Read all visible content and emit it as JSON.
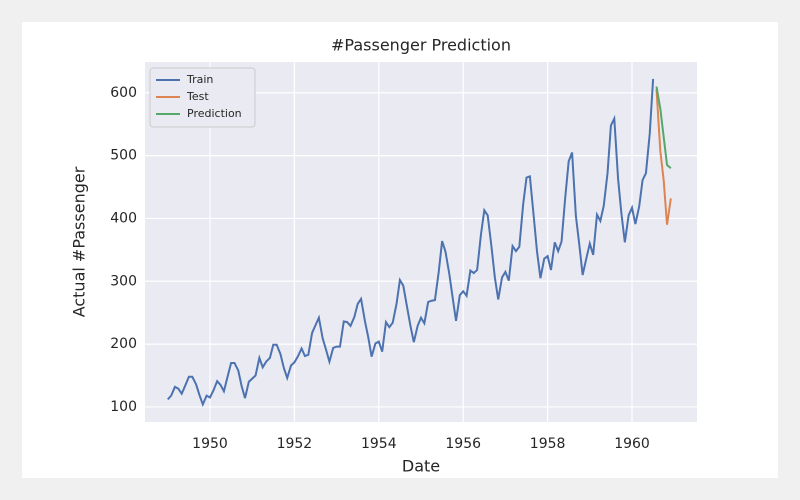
{
  "chart_data": {
    "type": "line",
    "title": "#Passenger Prediction",
    "xlabel": "Date",
    "ylabel": "Actual #Passenger",
    "xlim": [
      1948.46,
      1961.54
    ],
    "xticks": [
      1950,
      1952,
      1954,
      1956,
      1958,
      1960
    ],
    "ylim": [
      76,
      649
    ],
    "yticks": [
      100,
      200,
      300,
      400,
      500,
      600
    ],
    "grid": true,
    "legend": "upper left",
    "series": [
      {
        "name": "Train",
        "color": "#4c72b0",
        "x": [
          1949,
          1949.08,
          1949.17,
          1949.25,
          1949.33,
          1949.42,
          1949.5,
          1949.58,
          1949.67,
          1949.75,
          1949.83,
          1949.92,
          1950,
          1950.08,
          1950.17,
          1950.25,
          1950.33,
          1950.42,
          1950.5,
          1950.58,
          1950.67,
          1950.75,
          1950.83,
          1950.92,
          1951,
          1951.08,
          1951.17,
          1951.25,
          1951.33,
          1951.42,
          1951.5,
          1951.58,
          1951.67,
          1951.75,
          1951.83,
          1951.92,
          1952,
          1952.08,
          1952.17,
          1952.25,
          1952.33,
          1952.42,
          1952.5,
          1952.58,
          1952.67,
          1952.75,
          1952.83,
          1952.92,
          1953,
          1953.08,
          1953.17,
          1953.25,
          1953.33,
          1953.42,
          1953.5,
          1953.58,
          1953.67,
          1953.75,
          1953.83,
          1953.92,
          1954,
          1954.08,
          1954.17,
          1954.25,
          1954.33,
          1954.42,
          1954.5,
          1954.58,
          1954.67,
          1954.75,
          1954.83,
          1954.92,
          1955,
          1955.08,
          1955.17,
          1955.25,
          1955.33,
          1955.42,
          1955.5,
          1955.58,
          1955.67,
          1955.75,
          1955.83,
          1955.92,
          1956,
          1956.08,
          1956.17,
          1956.25,
          1956.33,
          1956.42,
          1956.5,
          1956.58,
          1956.67,
          1956.75,
          1956.83,
          1956.92,
          1957,
          1957.08,
          1957.17,
          1957.25,
          1957.33,
          1957.42,
          1957.5,
          1957.58,
          1957.67,
          1957.75,
          1957.83,
          1957.92,
          1958,
          1958.08,
          1958.17,
          1958.25,
          1958.33,
          1958.42,
          1958.5,
          1958.58,
          1958.67,
          1958.75,
          1958.83,
          1958.92,
          1959,
          1959.08,
          1959.17,
          1959.25,
          1959.33,
          1959.42,
          1959.5,
          1959.58,
          1959.67,
          1959.75,
          1959.83,
          1959.92,
          1960,
          1960.08,
          1960.17,
          1960.25,
          1960.33,
          1960.42,
          1960.5
        ],
        "values": [
          112,
          118,
          132,
          129,
          121,
          135,
          148,
          148,
          136,
          119,
          104,
          118,
          115,
          126,
          141,
          135,
          125,
          149,
          170,
          170,
          158,
          133,
          114,
          140,
          145,
          150,
          178,
          163,
          172,
          178,
          199,
          199,
          184,
          162,
          146,
          166,
          171,
          180,
          193,
          181,
          183,
          218,
          230,
          242,
          209,
          191,
          172,
          194,
          196,
          196,
          236,
          235,
          229,
          243,
          264,
          272,
          237,
          211,
          180,
          201,
          204,
          188,
          235,
          227,
          234,
          264,
          302,
          293,
          259,
          229,
          203,
          229,
          242,
          233,
          267,
          269,
          270,
          315,
          364,
          347,
          312,
          274,
          237,
          278,
          284,
          277,
          317,
          313,
          318,
          374,
          413,
          405,
          355,
          306,
          271,
          306,
          315,
          301,
          356,
          348,
          355,
          422,
          465,
          467,
          404,
          347,
          305,
          336,
          340,
          318,
          362,
          348,
          363,
          435,
          491,
          505,
          404,
          359,
          310,
          337,
          360,
          342,
          406,
          396,
          420,
          472,
          548,
          559,
          463,
          407,
          362,
          405,
          417,
          391,
          419,
          461,
          472,
          535,
          622
        ]
      },
      {
        "name": "Test",
        "color": "#dd8452",
        "x": [
          1960.58,
          1960.67,
          1960.75,
          1960.83,
          1960.92
        ],
        "values": [
          606,
          508,
          461,
          390,
          432
        ]
      },
      {
        "name": "Prediction",
        "color": "#55a868",
        "x": [
          1960.58,
          1960.67,
          1960.75,
          1960.83,
          1960.92
        ],
        "values": [
          610,
          575,
          530,
          485,
          480
        ]
      }
    ]
  }
}
